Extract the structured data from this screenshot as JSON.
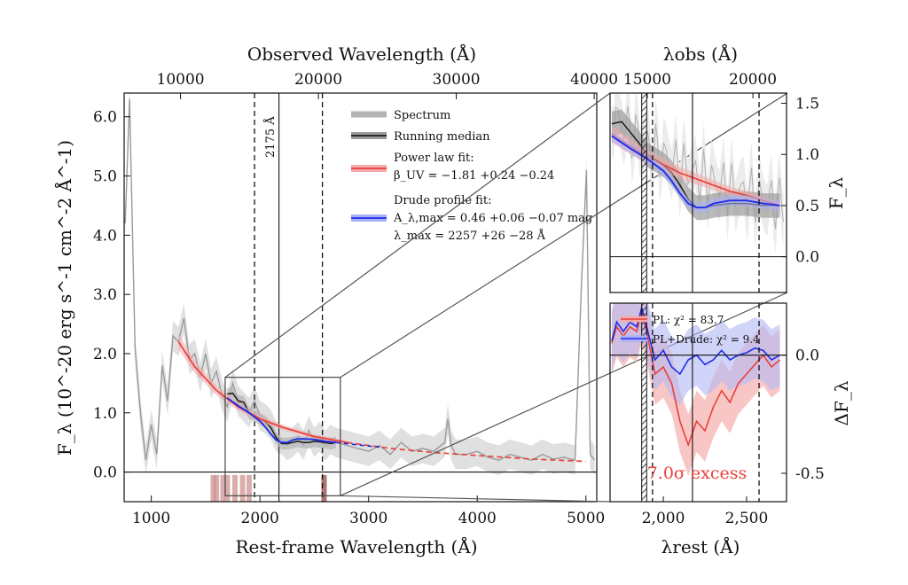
{
  "chart_data": [
    {
      "type": "line",
      "title": "",
      "xlabel": "Rest-frame Wavelength (Å)",
      "x2label": "Observed Wavelength (Å)",
      "ylabel": "F_λ (10^-20 erg s^-1 cm^-2 Å^-1)",
      "xlim": [
        750,
        5100
      ],
      "ylim": [
        -0.5,
        6.4
      ],
      "x_ticks": [
        1000,
        2000,
        3000,
        4000,
        5000
      ],
      "x_tick_labels": [
        "1000",
        "2000",
        "3000",
        "4000",
        "5000"
      ],
      "y_ticks": [
        0.0,
        1.0,
        2.0,
        3.0,
        4.0,
        5.0,
        6.0
      ],
      "y_tick_labels": [
        "0.0",
        "1.0",
        "2.0",
        "3.0",
        "4.0",
        "5.0",
        "6.0"
      ],
      "x2_ticks_obs": [
        10000,
        20000,
        30000,
        40000
      ],
      "x2_tick_labels": [
        "10000",
        "20000",
        "30000",
        "40000"
      ],
      "redshift_factor": 7.88,
      "vlines": {
        "dashed": [
          1950,
          2575
        ],
        "solid": [
          2175
        ],
        "solid_label": "2175 Å"
      },
      "zoom_box": {
        "x": [
          1680,
          2740
        ],
        "y": [
          -0.4,
          1.6
        ]
      },
      "series": [
        {
          "name": "Spectrum",
          "color": "#9a9a9a",
          "x": [
            760,
            800,
            850,
            900,
            950,
            1000,
            1050,
            1100,
            1150,
            1200,
            1250,
            1300,
            1350,
            1400,
            1450,
            1500,
            1550,
            1600,
            1650,
            1700,
            1750,
            1800,
            1850,
            1900,
            1950,
            2000,
            2050,
            2100,
            2150,
            2200,
            2250,
            2300,
            2350,
            2400,
            2450,
            2500,
            2550,
            2600,
            2650,
            2700,
            2800,
            2900,
            3000,
            3100,
            3200,
            3300,
            3400,
            3500,
            3600,
            3700,
            3730,
            3760,
            3800,
            3900,
            4000,
            4100,
            4200,
            4300,
            4400,
            4500,
            4600,
            4700,
            4800,
            4900,
            4960,
            5005,
            5040,
            5080
          ],
          "values": [
            4.2,
            6.3,
            2.1,
            1.0,
            0.2,
            0.8,
            0.3,
            1.8,
            1.2,
            2.3,
            2.2,
            2.6,
            1.9,
            2.0,
            1.6,
            2.0,
            1.5,
            1.7,
            1.3,
            1.1,
            1.5,
            1.2,
            1.1,
            1.0,
            1.2,
            0.95,
            0.9,
            0.8,
            0.6,
            0.55,
            0.45,
            0.5,
            0.6,
            0.45,
            0.7,
            0.5,
            0.6,
            0.45,
            0.55,
            0.5,
            0.45,
            0.4,
            0.35,
            0.45,
            0.3,
            0.5,
            0.35,
            0.4,
            0.35,
            0.5,
            0.9,
            0.45,
            0.3,
            0.3,
            0.35,
            0.25,
            0.2,
            0.3,
            0.25,
            0.2,
            0.3,
            0.22,
            0.25,
            0.2,
            3.2,
            5.1,
            0.3,
            0.2
          ]
        },
        {
          "name": "Running median",
          "color": "#1a1a1a",
          "x": [
            1700,
            1750,
            1800,
            1850,
            1900,
            1950,
            2000,
            2050,
            2100,
            2150,
            2200,
            2250,
            2300,
            2350,
            2400,
            2450,
            2500,
            2550,
            2600,
            2650,
            2700
          ],
          "values": [
            1.32,
            1.33,
            1.2,
            1.18,
            1.0,
            0.95,
            0.9,
            0.85,
            0.75,
            0.58,
            0.48,
            0.48,
            0.5,
            0.52,
            0.5,
            0.5,
            0.52,
            0.51,
            0.5,
            0.48,
            0.5
          ]
        },
        {
          "name": "Power law fit",
          "color": "#e8413c",
          "x": [
            1250,
            1400,
            1600,
            1800,
            2000,
            2200,
            2500,
            2800,
            3200,
            3600,
            4000,
            4500,
            5000
          ],
          "values": [
            2.2,
            1.78,
            1.38,
            1.1,
            0.9,
            0.76,
            0.6,
            0.5,
            0.4,
            0.33,
            0.28,
            0.22,
            0.18
          ]
        },
        {
          "name": "Drude profile fit",
          "color": "#1f2ee8",
          "x": [
            1700,
            1800,
            1900,
            2000,
            2050,
            2100,
            2150,
            2200,
            2250,
            2300,
            2350,
            2400,
            2500,
            2600,
            2700
          ],
          "values": [
            1.25,
            1.12,
            1.0,
            0.86,
            0.76,
            0.64,
            0.54,
            0.5,
            0.5,
            0.54,
            0.56,
            0.56,
            0.55,
            0.52,
            0.5
          ]
        }
      ],
      "legend": {
        "position": "top-center",
        "entries": [
          {
            "label": "Spectrum",
            "color": "#b4b4b4"
          },
          {
            "label": "Running median",
            "color": "#1a1a1a"
          },
          {
            "label": "Power law fit:",
            "color": "#e8413c",
            "detail": "β_UV = −1.81 +0.24 −0.24"
          },
          {
            "label": "Drude profile fit:",
            "color": "#1f2ee8",
            "detail": "A_λ,max = 0.46 +0.06 −0.07 mag",
            "detail2": "λ_max = 2257 +26 −28 Å"
          }
        ]
      }
    },
    {
      "type": "line",
      "panel": "zoom-top",
      "xlabel": "",
      "x2label": "λobs (Å)",
      "ylabel": "F_λ",
      "xlim": [
        1680,
        2740
      ],
      "ylim": [
        -0.35,
        1.6
      ],
      "y_ticks": [
        0.0,
        0.5,
        1.0,
        1.5
      ],
      "y_tick_labels": [
        "0.0",
        "0.5",
        "1.0",
        "1.5"
      ],
      "x2_ticks_obs": [
        15000,
        20000
      ],
      "x2_tick_labels": [
        "15000",
        "20000"
      ],
      "series": [
        {
          "name": "Running median",
          "color": "#1a1a1a",
          "x": [
            1690,
            1750,
            1800,
            1850,
            1900,
            1950,
            2000,
            2050,
            2100,
            2150,
            2200,
            2250,
            2300,
            2400,
            2500,
            2600,
            2700
          ],
          "values": [
            1.3,
            1.32,
            1.22,
            1.12,
            1.0,
            0.95,
            0.9,
            0.82,
            0.7,
            0.56,
            0.48,
            0.48,
            0.5,
            0.52,
            0.52,
            0.5,
            0.5
          ]
        },
        {
          "name": "Power law fit",
          "color": "#e8413c",
          "x": [
            1690,
            1800,
            1900,
            2000,
            2100,
            2200,
            2300,
            2400,
            2500,
            2600,
            2700
          ],
          "values": [
            1.2,
            1.08,
            0.98,
            0.9,
            0.82,
            0.76,
            0.7,
            0.64,
            0.6,
            0.55,
            0.5
          ]
        },
        {
          "name": "Drude profile fit",
          "color": "#1f2ee8",
          "x": [
            1690,
            1800,
            1900,
            2000,
            2050,
            2100,
            2150,
            2200,
            2250,
            2300,
            2400,
            2500,
            2600,
            2700
          ],
          "values": [
            1.18,
            1.06,
            0.96,
            0.84,
            0.74,
            0.62,
            0.52,
            0.48,
            0.48,
            0.52,
            0.55,
            0.55,
            0.52,
            0.5
          ]
        }
      ]
    },
    {
      "type": "line",
      "panel": "zoom-bottom",
      "xlabel": "λrest (Å)",
      "ylabel": "ΔF_λ",
      "xlim": [
        1680,
        2740
      ],
      "ylim": [
        -0.62,
        0.22
      ],
      "x_ticks": [
        2000,
        2500
      ],
      "x_tick_labels": [
        "2,000",
        "2,500"
      ],
      "y_ticks": [
        0.0,
        -0.5
      ],
      "y_tick_labels": [
        "0.0",
        "-0.5"
      ],
      "annotation": "7.0σ excess",
      "series": [
        {
          "name": "PL",
          "label": "PL: χ² = 83.7",
          "color": "#e8413c",
          "x": [
            1690,
            1720,
            1760,
            1800,
            1840,
            1870,
            1900,
            1950,
            2000,
            2050,
            2100,
            2150,
            2200,
            2250,
            2300,
            2350,
            2400,
            2450,
            2500,
            2550,
            2600,
            2650,
            2700
          ],
          "values": [
            0.05,
            0.12,
            0.08,
            0.12,
            0.1,
            0.18,
            0.1,
            -0.08,
            -0.05,
            -0.12,
            -0.28,
            -0.38,
            -0.28,
            -0.32,
            -0.22,
            -0.15,
            -0.2,
            -0.12,
            -0.08,
            -0.04,
            0.0,
            -0.05,
            -0.02
          ]
        },
        {
          "name": "PL+Drude",
          "label": "PL+Drude: χ² = 9.4",
          "color": "#1f2ee8",
          "x": [
            1690,
            1720,
            1760,
            1800,
            1840,
            1870,
            1900,
            1950,
            2000,
            2050,
            2100,
            2150,
            2200,
            2250,
            2300,
            2350,
            2400,
            2450,
            2500,
            2550,
            2600,
            2650,
            2700
          ],
          "values": [
            0.06,
            0.14,
            0.1,
            0.14,
            0.12,
            0.2,
            0.12,
            -0.02,
            0.02,
            -0.05,
            -0.08,
            -0.02,
            0.0,
            -0.04,
            -0.02,
            0.02,
            -0.02,
            0.0,
            0.01,
            0.03,
            0.02,
            -0.02,
            0.0
          ]
        }
      ]
    }
  ]
}
